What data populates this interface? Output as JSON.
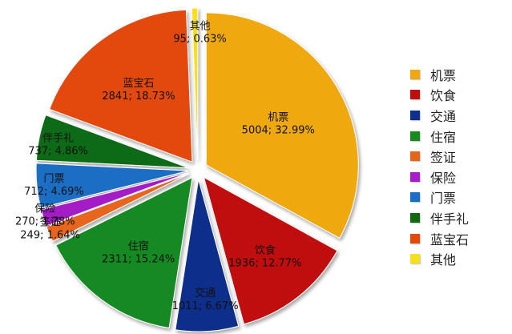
{
  "chart_data": {
    "type": "pie",
    "categories": [
      "机票",
      "饮食",
      "交通",
      "住宿",
      "签证",
      "保险",
      "门票",
      "伴手礼",
      "蓝宝石",
      "其他"
    ],
    "values": [
      5004,
      1936,
      1011,
      2311,
      249,
      270,
      712,
      737,
      2841,
      95
    ],
    "percent_labels": [
      "32.99%",
      "12.77%",
      "6.67%",
      "15.24%",
      "1.64%",
      "1.78%",
      "4.69%",
      "4.86%",
      "18.73%",
      "0.63%"
    ],
    "value_labels": [
      "5004; 32.99%",
      "1936; 12.77%",
      "1011; 6.67%",
      "2311; 15.24%",
      "249; 1.64%",
      "270; 1.78%",
      "712; 4.69%",
      "737; 4.86%",
      "2841; 18.73%",
      "95; 0.63%"
    ],
    "colors": [
      "#efa80f",
      "#c00d0d",
      "#0e2f8a",
      "#188a20",
      "#e5661a",
      "#a41fc6",
      "#1a6ec4",
      "#0f6a12",
      "#e34a09",
      "#f7df1e"
    ],
    "start": "12 o'clock",
    "direction": "clockwise",
    "exploded": true,
    "legend_position": "right"
  }
}
